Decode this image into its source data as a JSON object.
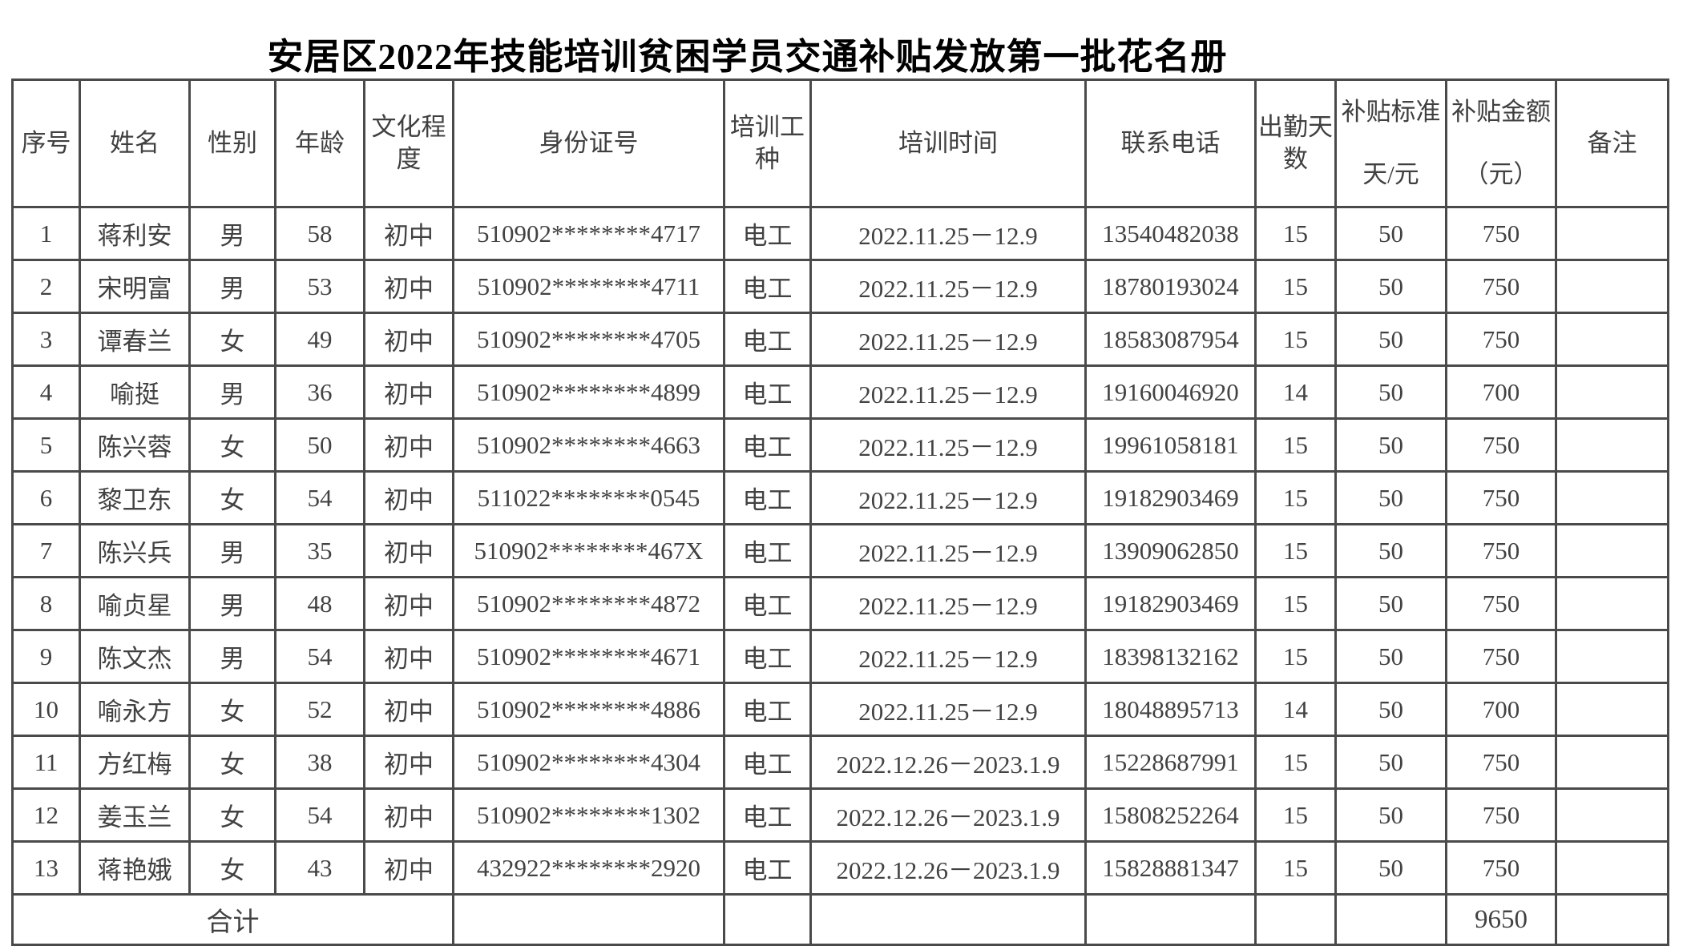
{
  "title": "安居区2022年技能培训贫困学员交通补贴发放第一批花名册",
  "table": {
    "columns": [
      {
        "key": "index",
        "label": "序号"
      },
      {
        "key": "name",
        "label": "姓名"
      },
      {
        "key": "gender",
        "label": "性别"
      },
      {
        "key": "age",
        "label": "年龄"
      },
      {
        "key": "education",
        "label": "文化程\n度"
      },
      {
        "key": "id_number",
        "label": "身份证号"
      },
      {
        "key": "training_type",
        "label": "培训工\n种"
      },
      {
        "key": "training_time",
        "label": "培训时间"
      },
      {
        "key": "phone",
        "label": "联系电话"
      },
      {
        "key": "attendance_days",
        "label": "出勤天\n数"
      },
      {
        "key": "subsidy_standard",
        "label": "补贴标准\n天/元"
      },
      {
        "key": "subsidy_amount",
        "label": "补贴金额\n（元）"
      },
      {
        "key": "remarks",
        "label": "备注"
      }
    ],
    "rows": [
      [
        "1",
        "蒋利安",
        "男",
        "58",
        "初中",
        "510902********4717",
        "电工",
        "2022.11.25－12.9",
        "13540482038",
        "15",
        "50",
        "750",
        ""
      ],
      [
        "2",
        "宋明富",
        "男",
        "53",
        "初中",
        "510902********4711",
        "电工",
        "2022.11.25－12.9",
        "18780193024",
        "15",
        "50",
        "750",
        ""
      ],
      [
        "3",
        "谭春兰",
        "女",
        "49",
        "初中",
        "510902********4705",
        "电工",
        "2022.11.25－12.9",
        "18583087954",
        "15",
        "50",
        "750",
        ""
      ],
      [
        "4",
        "喻挺",
        "男",
        "36",
        "初中",
        "510902********4899",
        "电工",
        "2022.11.25－12.9",
        "19160046920",
        "14",
        "50",
        "700",
        ""
      ],
      [
        "5",
        "陈兴蓉",
        "女",
        "50",
        "初中",
        "510902********4663",
        "电工",
        "2022.11.25－12.9",
        "19961058181",
        "15",
        "50",
        "750",
        ""
      ],
      [
        "6",
        "黎卫东",
        "女",
        "54",
        "初中",
        "511022********0545",
        "电工",
        "2022.11.25－12.9",
        "19182903469",
        "15",
        "50",
        "750",
        ""
      ],
      [
        "7",
        "陈兴兵",
        "男",
        "35",
        "初中",
        "510902********467X",
        "电工",
        "2022.11.25－12.9",
        "13909062850",
        "15",
        "50",
        "750",
        ""
      ],
      [
        "8",
        "喻贞星",
        "男",
        "48",
        "初中",
        "510902********4872",
        "电工",
        "2022.11.25－12.9",
        "19182903469",
        "15",
        "50",
        "750",
        ""
      ],
      [
        "9",
        "陈文杰",
        "男",
        "54",
        "初中",
        "510902********4671",
        "电工",
        "2022.11.25－12.9",
        "18398132162",
        "15",
        "50",
        "750",
        ""
      ],
      [
        "10",
        "喻永方",
        "女",
        "52",
        "初中",
        "510902********4886",
        "电工",
        "2022.11.25－12.9",
        "18048895713",
        "14",
        "50",
        "700",
        ""
      ],
      [
        "11",
        "方红梅",
        "女",
        "38",
        "初中",
        "510902********4304",
        "电工",
        "2022.12.26－2023.1.9",
        "15228687991",
        "15",
        "50",
        "750",
        ""
      ],
      [
        "12",
        "姜玉兰",
        "女",
        "54",
        "初中",
        "510902********1302",
        "电工",
        "2022.12.26－2023.1.9",
        "15808252264",
        "15",
        "50",
        "750",
        ""
      ],
      [
        "13",
        "蒋艳娥",
        "女",
        "43",
        "初中",
        "432922********2920",
        "电工",
        "2022.12.26－2023.1.9",
        "15828881347",
        "15",
        "50",
        "750",
        ""
      ]
    ],
    "footer": {
      "label": "合计",
      "subsidy_amount_total": "9650"
    }
  },
  "colors": {
    "background": "#ffffff",
    "text": "#424242",
    "border": "#4a4a4a",
    "title": "#000000"
  }
}
